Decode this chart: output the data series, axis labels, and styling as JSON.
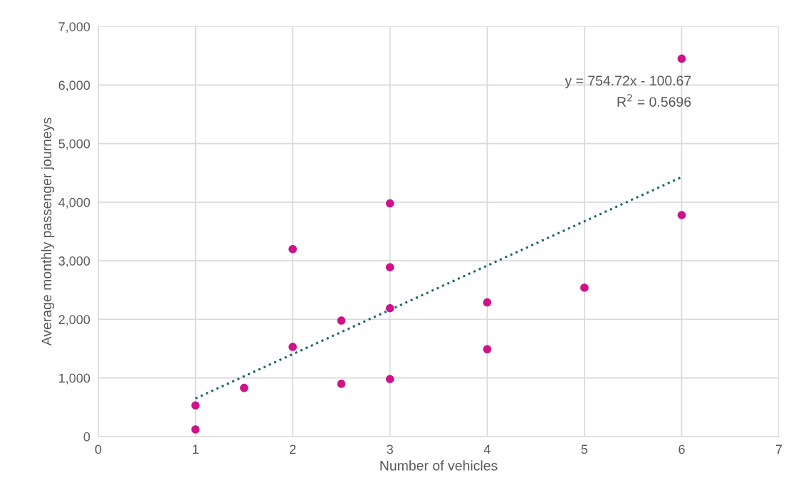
{
  "chart_data": {
    "type": "scatter",
    "xlabel": "Number of vehicles",
    "ylabel": "Average monthly passenger journeys",
    "x": [
      1,
      1,
      1.5,
      2,
      2,
      2.5,
      2.5,
      3,
      3,
      3,
      3,
      4,
      4,
      5,
      6,
      6
    ],
    "series": [
      {
        "color": "#d0128a",
        "values": [
          530,
          120,
          830,
          1530,
          3200,
          1980,
          900,
          3980,
          2890,
          2190,
          980,
          2290,
          1490,
          2540,
          6450,
          3780
        ]
      },
      {
        "type": "line",
        "color": "#1f6470",
        "line_style": "dotted",
        "marker": "none",
        "x": [
          1,
          6
        ],
        "values": [
          650,
          4430
        ]
      }
    ],
    "marker": "circle",
    "xlim": [
      0,
      7
    ],
    "xticks": [
      0,
      1,
      2,
      3,
      4,
      5,
      6,
      7
    ],
    "ylim": [
      0,
      7000
    ],
    "yticks": [
      {
        "value": 0,
        "label": "0"
      },
      {
        "value": 1000,
        "label": "1,000"
      },
      {
        "value": 2000,
        "label": "2,000"
      },
      {
        "value": 3000,
        "label": "3,000"
      },
      {
        "value": 4000,
        "label": "4,000"
      },
      {
        "value": 5000,
        "label": "5,000"
      },
      {
        "value": 6000,
        "label": "6,000"
      },
      {
        "value": 7000,
        "label": "7,000"
      }
    ],
    "grid": true,
    "legend": false,
    "annotations": [
      "y = 754.72x - 100.67",
      "R$^{2}$ = 0.5696"
    ]
  }
}
